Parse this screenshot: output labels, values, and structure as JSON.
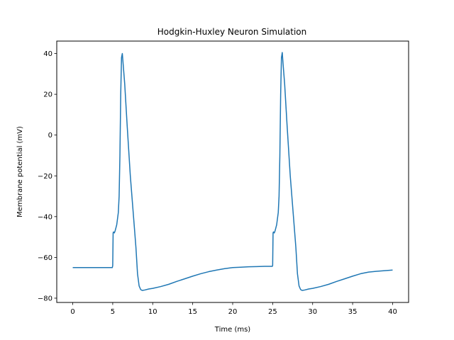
{
  "chart_data": {
    "type": "line",
    "title": "Hodgkin-Huxley Neuron Simulation",
    "xlabel": "Time (ms)",
    "ylabel": "Membrane potential (mV)",
    "xlim": [
      -2,
      42
    ],
    "ylim": [
      -82.1,
      46.1
    ],
    "xticks": [
      0,
      5,
      10,
      15,
      20,
      25,
      30,
      35,
      40
    ],
    "xtick_labels": [
      "0",
      "5",
      "10",
      "15",
      "20",
      "25",
      "30",
      "35",
      "40"
    ],
    "yticks": [
      -80,
      -60,
      -40,
      -20,
      0,
      20,
      40
    ],
    "ytick_labels": [
      "−80",
      "−60",
      "−40",
      "−20",
      "0",
      "20",
      "40"
    ],
    "grid": false,
    "legend": "none",
    "series": [
      {
        "color": "#1f77b4",
        "x": [
          0,
          1,
          2,
          3,
          4,
          4.95,
          5.0,
          5.05,
          5.1,
          5.2,
          5.3,
          5.5,
          5.7,
          5.8,
          5.9,
          6.0,
          6.1,
          6.2,
          6.3,
          6.5,
          6.8,
          7.2,
          7.6,
          7.9,
          8.1,
          8.3,
          8.5,
          8.7,
          9.0,
          9.5,
          10,
          11,
          12,
          13,
          14,
          15,
          16,
          17,
          18,
          19,
          20,
          21,
          22,
          23,
          24,
          24.9,
          24.95,
          25.0,
          25.05,
          25.1,
          25.2,
          25.3,
          25.5,
          25.7,
          25.8,
          25.9,
          26.0,
          26.1,
          26.2,
          26.3,
          26.5,
          26.8,
          27.2,
          27.6,
          27.9,
          28.1,
          28.3,
          28.5,
          28.7,
          29.0,
          29.5,
          30,
          31,
          32,
          33,
          34,
          35,
          36,
          37,
          38,
          39,
          40
        ],
        "y": [
          -65,
          -65,
          -65,
          -65,
          -65,
          -65,
          -64,
          -48,
          -47.5,
          -48,
          -47,
          -44,
          -38,
          -30,
          -10,
          20,
          38,
          40,
          35,
          25,
          5,
          -20,
          -40,
          -55,
          -68,
          -74,
          -75.8,
          -76.2,
          -76,
          -75.5,
          -75.2,
          -74.3,
          -73.2,
          -71.8,
          -70.5,
          -69.2,
          -68,
          -67,
          -66.2,
          -65.5,
          -65,
          -64.8,
          -64.6,
          -64.5,
          -64.4,
          -64.4,
          -64.4,
          -64,
          -48,
          -47.5,
          -48,
          -47,
          -44,
          -38,
          -30,
          -10,
          20,
          38,
          40.5,
          35,
          25,
          5,
          -20,
          -40,
          -55,
          -68,
          -74,
          -75.8,
          -76.2,
          -76,
          -75.5,
          -75.2,
          -74.3,
          -73.2,
          -71.8,
          -70.5,
          -69.2,
          -68,
          -67.2,
          -66.8,
          -66.5,
          -66.2
        ]
      }
    ]
  }
}
